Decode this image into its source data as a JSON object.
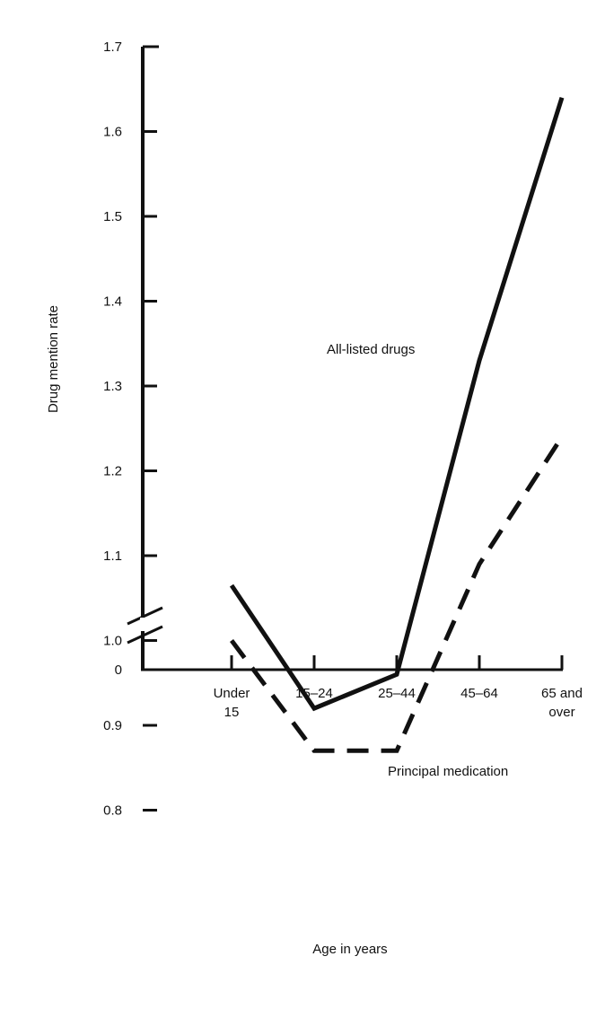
{
  "chart_data": {
    "type": "line",
    "title": "",
    "xlabel": "Age in years",
    "ylabel": "Drug mention rate",
    "categories": [
      [
        "Under",
        "15"
      ],
      [
        "15–24"
      ],
      [
        "25–44"
      ],
      [
        "45–64"
      ],
      [
        "65 and",
        "over"
      ]
    ],
    "yticks": [
      "0",
      "0.8",
      "0.9",
      "1.0",
      "1.1",
      "1.2",
      "1.3",
      "1.4",
      "1.5",
      "1.6",
      "1.7"
    ],
    "ylim": [
      0.75,
      1.7
    ],
    "axis_break": true,
    "grid": false,
    "series": [
      {
        "name": "All-listed drugs",
        "style": "solid",
        "values": [
          1.065,
          0.92,
          0.96,
          1.33,
          1.64
        ]
      },
      {
        "name": "Principal medication",
        "style": "dashed",
        "values": [
          1.0,
          0.87,
          0.87,
          1.09,
          1.24
        ]
      }
    ],
    "colors": {
      "line": "#111111",
      "axis": "#111111"
    }
  }
}
